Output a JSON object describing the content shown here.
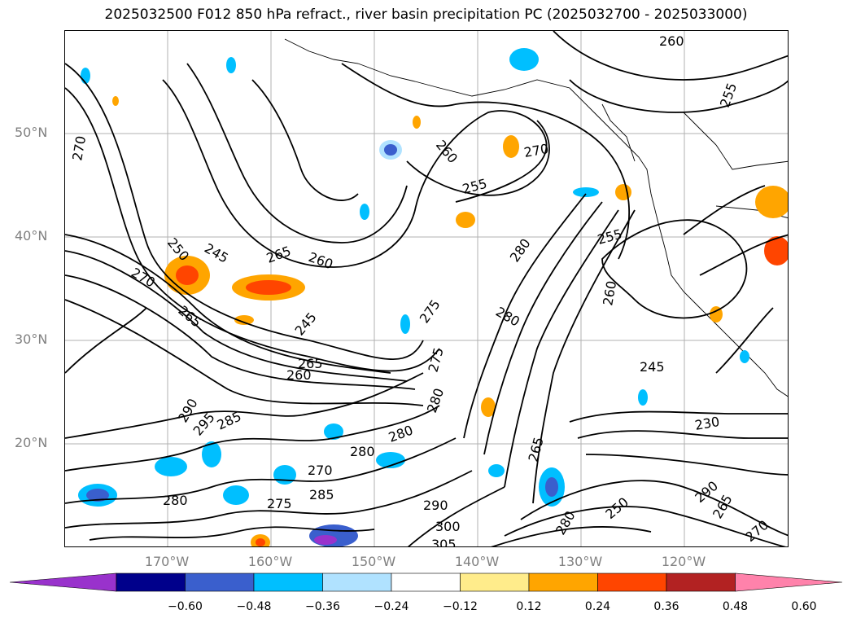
{
  "title": "2025032500 F012 850 hPa refract., river basin precipitation PC (2025032700 - 2025033000)",
  "lat_labels": [
    "50°N",
    "40°N",
    "30°N",
    "20°N"
  ],
  "lon_labels": [
    "170°W",
    "160°W",
    "150°W",
    "140°W",
    "130°W",
    "120°W"
  ],
  "colorbar": {
    "colors": [
      "#9932cc",
      "#00008b",
      "#3a5fcd",
      "#00bfff",
      "#b0e2ff",
      "#ffffff",
      "#ffec8b",
      "#ffa500",
      "#ff4500",
      "#b22222",
      "#ff82ab"
    ],
    "ticks": [
      "−0.60",
      "−0.48",
      "−0.36",
      "−0.24",
      "−0.12",
      "0.12",
      "0.24",
      "0.36",
      "0.48",
      "0.60"
    ]
  },
  "contour_labels": [
    "260",
    "255",
    "270",
    "260",
    "255",
    "270",
    "245",
    "250",
    "265",
    "260",
    "270",
    "265",
    "245",
    "280",
    "255",
    "260",
    "275",
    "280",
    "265",
    "260",
    "275",
    "280",
    "245",
    "290",
    "295",
    "285",
    "280",
    "280",
    "270",
    "285",
    "275",
    "280",
    "290",
    "300",
    "305",
    "265",
    "280",
    "250",
    "230",
    "290",
    "265",
    "270"
  ]
}
